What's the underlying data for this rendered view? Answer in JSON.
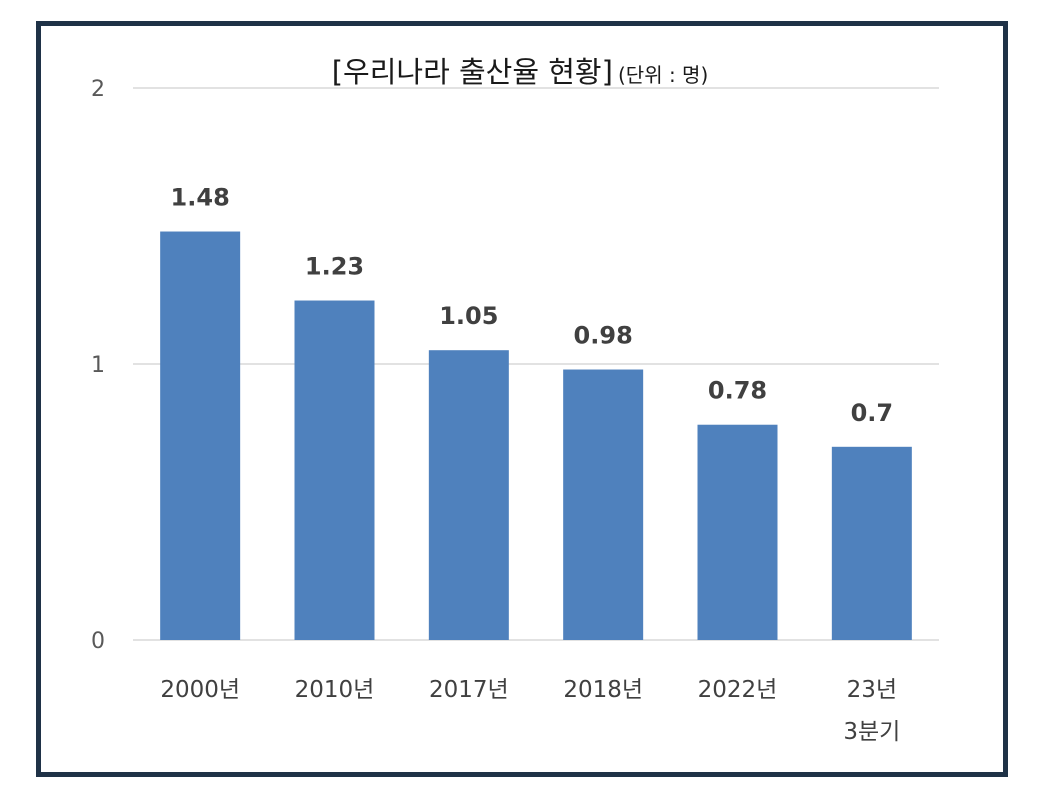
{
  "chart_data": {
    "type": "bar",
    "title": "[우리나라 출산율 현황]",
    "subtitle": "(단위 : 명)",
    "categories": [
      [
        "2000년"
      ],
      [
        "2010년"
      ],
      [
        "2017년"
      ],
      [
        "2018년"
      ],
      [
        "2022년"
      ],
      [
        "23년",
        "3분기"
      ]
    ],
    "values": [
      1.48,
      1.23,
      1.05,
      0.98,
      0.78,
      0.7
    ],
    "value_labels": [
      "1.48",
      "1.23",
      "1.05",
      "0.98",
      "0.78",
      "0.7"
    ],
    "xlabel": "",
    "ylabel": "",
    "ylim": [
      0,
      2
    ],
    "yticks": [
      0,
      1,
      2
    ],
    "ytick_labels": [
      "0",
      "1",
      "2"
    ],
    "grid": true,
    "legend": "none",
    "colors": {
      "bar": "#4f81bd",
      "grid": "#d9d9d9",
      "frame": "#1f3247"
    }
  }
}
